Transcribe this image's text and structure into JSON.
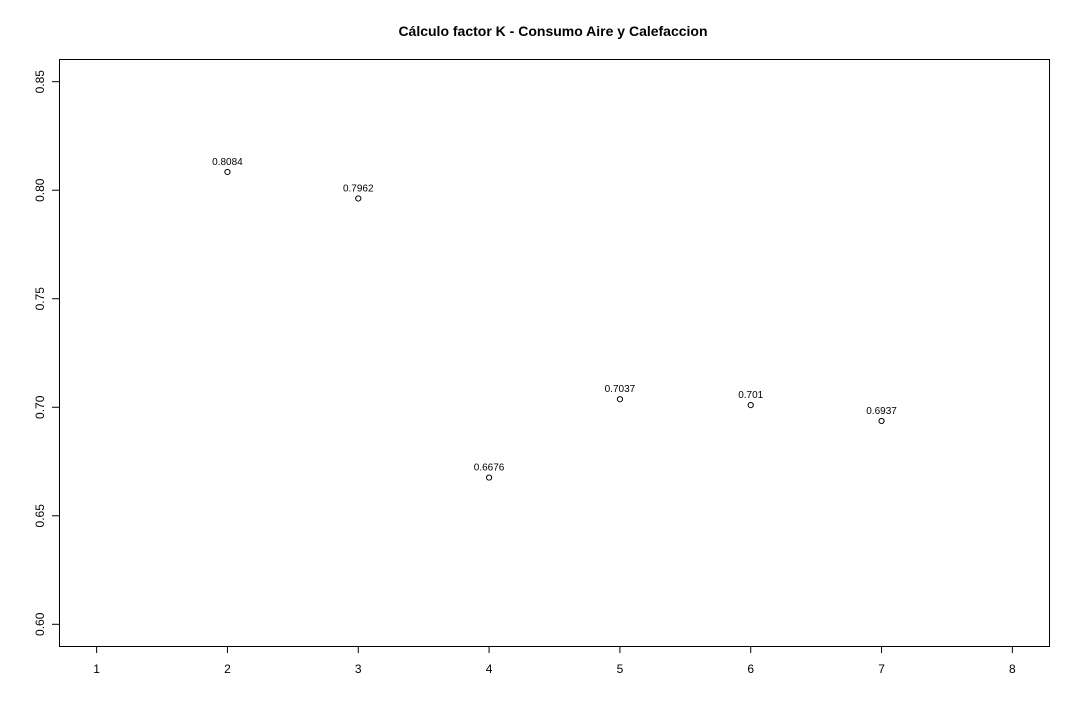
{
  "chart_data": {
    "type": "scatter",
    "title": "Cálculo factor K - Consumo Aire y Calefaccion",
    "xlabel": "",
    "ylabel": "",
    "x": [
      2,
      3,
      4,
      5,
      6,
      7
    ],
    "y": [
      0.8084,
      0.7962,
      0.6676,
      0.7037,
      0.701,
      0.6937
    ],
    "point_labels": [
      "0.8084",
      "0.7962",
      "0.6676",
      "0.7037",
      "0.701",
      "0.6937"
    ],
    "x_ticks": [
      1,
      2,
      3,
      4,
      5,
      6,
      7,
      8
    ],
    "x_tick_labels": [
      "1",
      "2",
      "3",
      "4",
      "5",
      "6",
      "7",
      "8"
    ],
    "y_ticks": [
      0.6,
      0.65,
      0.7,
      0.75,
      0.8,
      0.85
    ],
    "y_tick_labels": [
      "0.60",
      "0.65",
      "0.70",
      "0.75",
      "0.80",
      "0.85"
    ],
    "xlim": [
      0.72,
      8.28
    ],
    "ylim": [
      0.59,
      0.86
    ],
    "grid": false,
    "marker": "open-circle",
    "colors": {
      "point": "#000000",
      "axis": "#000000",
      "background": "#ffffff"
    }
  }
}
